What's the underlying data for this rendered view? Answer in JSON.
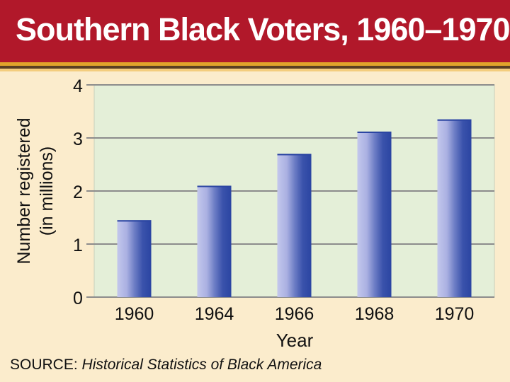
{
  "header": {
    "title": "Southern Black Voters, 1960–1970"
  },
  "source": {
    "label": "SOURCE:",
    "work": "Historical Statistics of Black America"
  },
  "colors": {
    "header_bg": "#b1182a",
    "plot_bg": "#e4efd8",
    "page_bg": "#fbeccc",
    "bar_dark": "#2b45a2",
    "bar_light": "#c4c8ec"
  },
  "chart_data": {
    "type": "bar",
    "title": "Southern Black Voters, 1960–1970",
    "xlabel": "Year",
    "ylabel": "Number registered",
    "ylabel_sub": "(in millions)",
    "categories": [
      "1960",
      "1964",
      "1966",
      "1968",
      "1970"
    ],
    "values": [
      1.45,
      2.1,
      2.7,
      3.12,
      3.35
    ],
    "ylim": [
      0,
      4
    ],
    "yticks": [
      "0",
      "1",
      "2",
      "3",
      "4"
    ],
    "grid": true,
    "legend": "none"
  }
}
